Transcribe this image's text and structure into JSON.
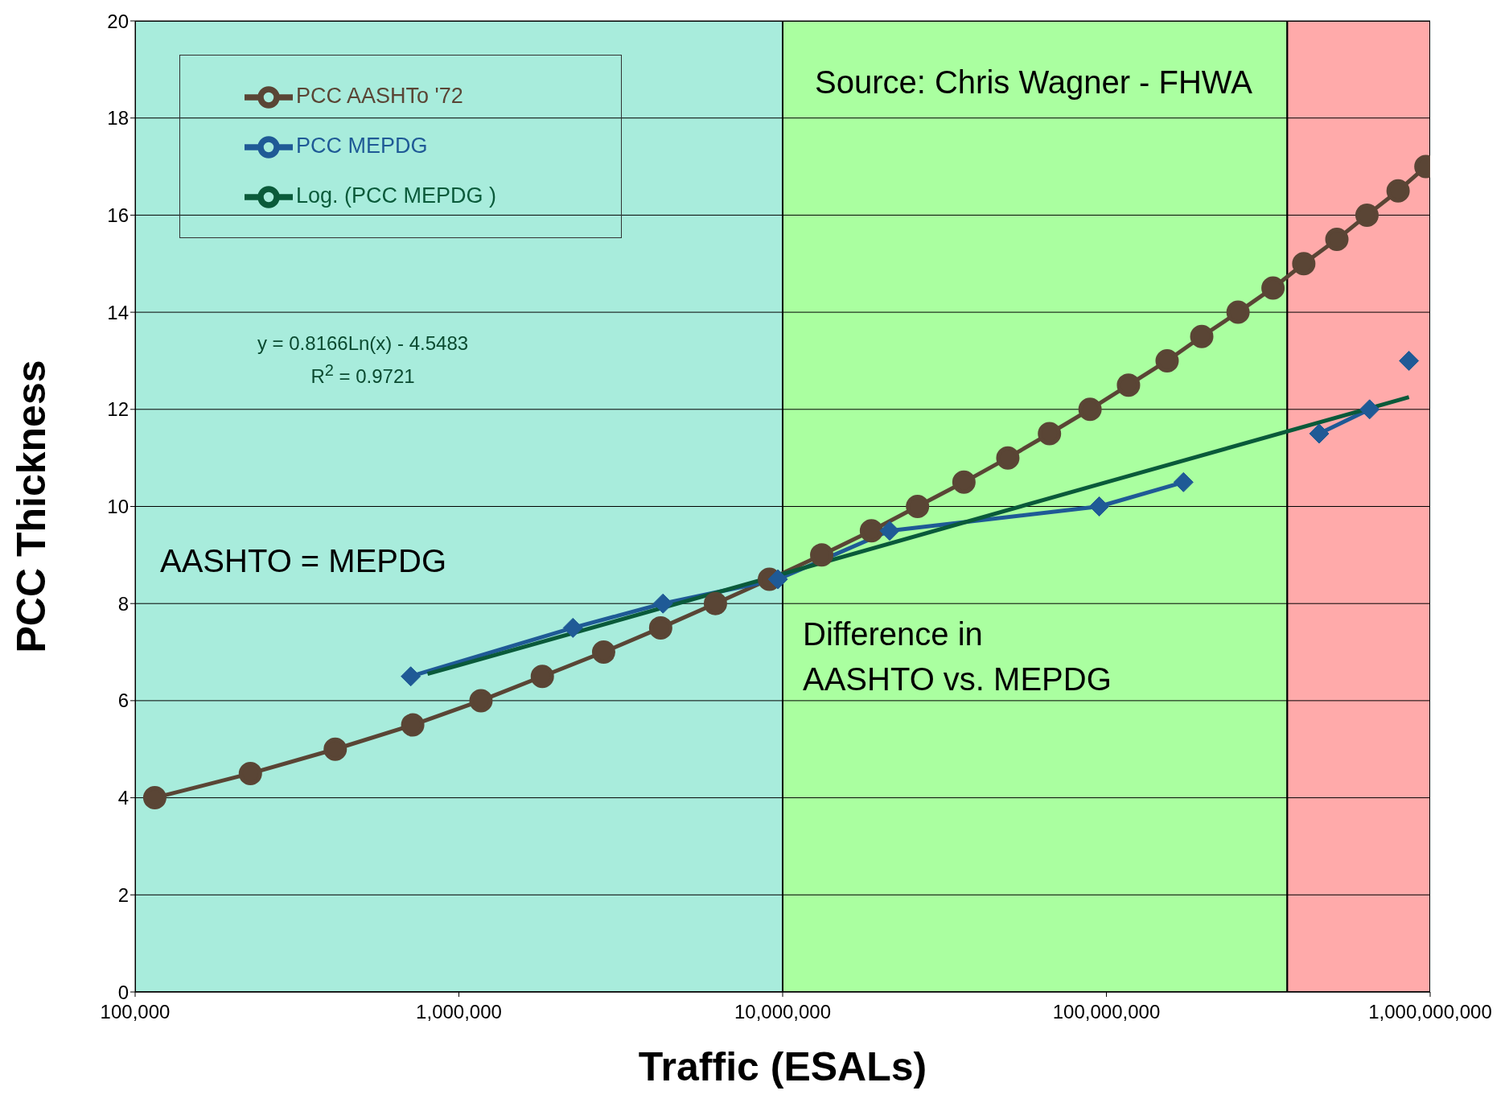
{
  "chart_data": {
    "type": "line",
    "xlabel": "Traffic (ESALs)",
    "ylabel": "PCC Thickness",
    "log": "x",
    "grid": "y",
    "legend": "top left",
    "xlim": [
      100000,
      1000000000
    ],
    "xticks": [
      {
        "value": 100000,
        "label": "100,000"
      },
      {
        "value": 1000000,
        "label": "1,000,000"
      },
      {
        "value": 10000000,
        "label": "10,000,000"
      },
      {
        "value": 100000000,
        "label": "100,000,000"
      },
      {
        "value": 1000000000,
        "label": "1,000,000,000"
      }
    ],
    "ylim": [
      0,
      20
    ],
    "yticks": [
      0,
      2,
      4,
      6,
      8,
      10,
      12,
      14,
      16,
      18,
      20
    ],
    "bands": [
      {
        "axis": "x",
        "from": 100000,
        "to": 10000000,
        "color": "#a8ecdc"
      },
      {
        "axis": "x",
        "from": 10000000,
        "to": 362000000,
        "color": "#aaffa0"
      },
      {
        "axis": "x",
        "from": 362000000,
        "to": 1000000000,
        "color": "#ffaaaa"
      }
    ],
    "series": [
      {
        "name": "PCC AASHTo '72",
        "color": "#5a4535",
        "marker": "circle",
        "x": [
          115000,
          227000,
          415000,
          720000,
          1170000,
          1810000,
          2800000,
          4200000,
          6200000,
          9100000,
          13200000,
          18800000,
          26100000,
          36300000,
          49600000,
          66700000,
          89000000,
          117000000,
          154000000,
          197000000,
          255000000,
          327000000,
          407000000,
          515000000,
          638000000,
          796000000,
          970000000
        ],
        "values": [
          4.0,
          4.5,
          5.0,
          5.5,
          6.0,
          6.5,
          7.0,
          7.5,
          8.0,
          8.5,
          9.0,
          9.5,
          10.0,
          10.5,
          11.0,
          11.5,
          12.0,
          12.5,
          13.0,
          13.5,
          14.0,
          14.5,
          15.0,
          15.5,
          16.0,
          16.5,
          17.0
        ]
      },
      {
        "name": "PCC MEPDG",
        "color": "#1f5a96",
        "marker": "diamond",
        "x": [
          710000,
          2250000,
          4270000,
          9670000,
          21400000,
          95000000,
          173000000,
          300000000,
          454000000,
          650000000,
          750000000,
          860000000
        ],
        "values": [
          6.5,
          7.5,
          8.0,
          8.5,
          9.5,
          10.0,
          10.5,
          null,
          11.5,
          12.0,
          null,
          13.0
        ]
      },
      {
        "name": "Log. (PCC MEPDG )",
        "color": "#0a5a3a",
        "marker": "none",
        "x": [
          800000,
          1000000,
          10000000,
          100000000,
          860000000
        ],
        "values": [
          6.55,
          6.73,
          8.61,
          10.5,
          12.25
        ]
      }
    ],
    "annotations": [
      "Source: Chris Wagner - FHWA",
      "AASHTO = MEPDG",
      "Difference in\nAASHTO vs. MEPDG",
      "y = 0.8166Ln(x) - 4.5483",
      "R$^{2}$ = 0.9721"
    ]
  }
}
